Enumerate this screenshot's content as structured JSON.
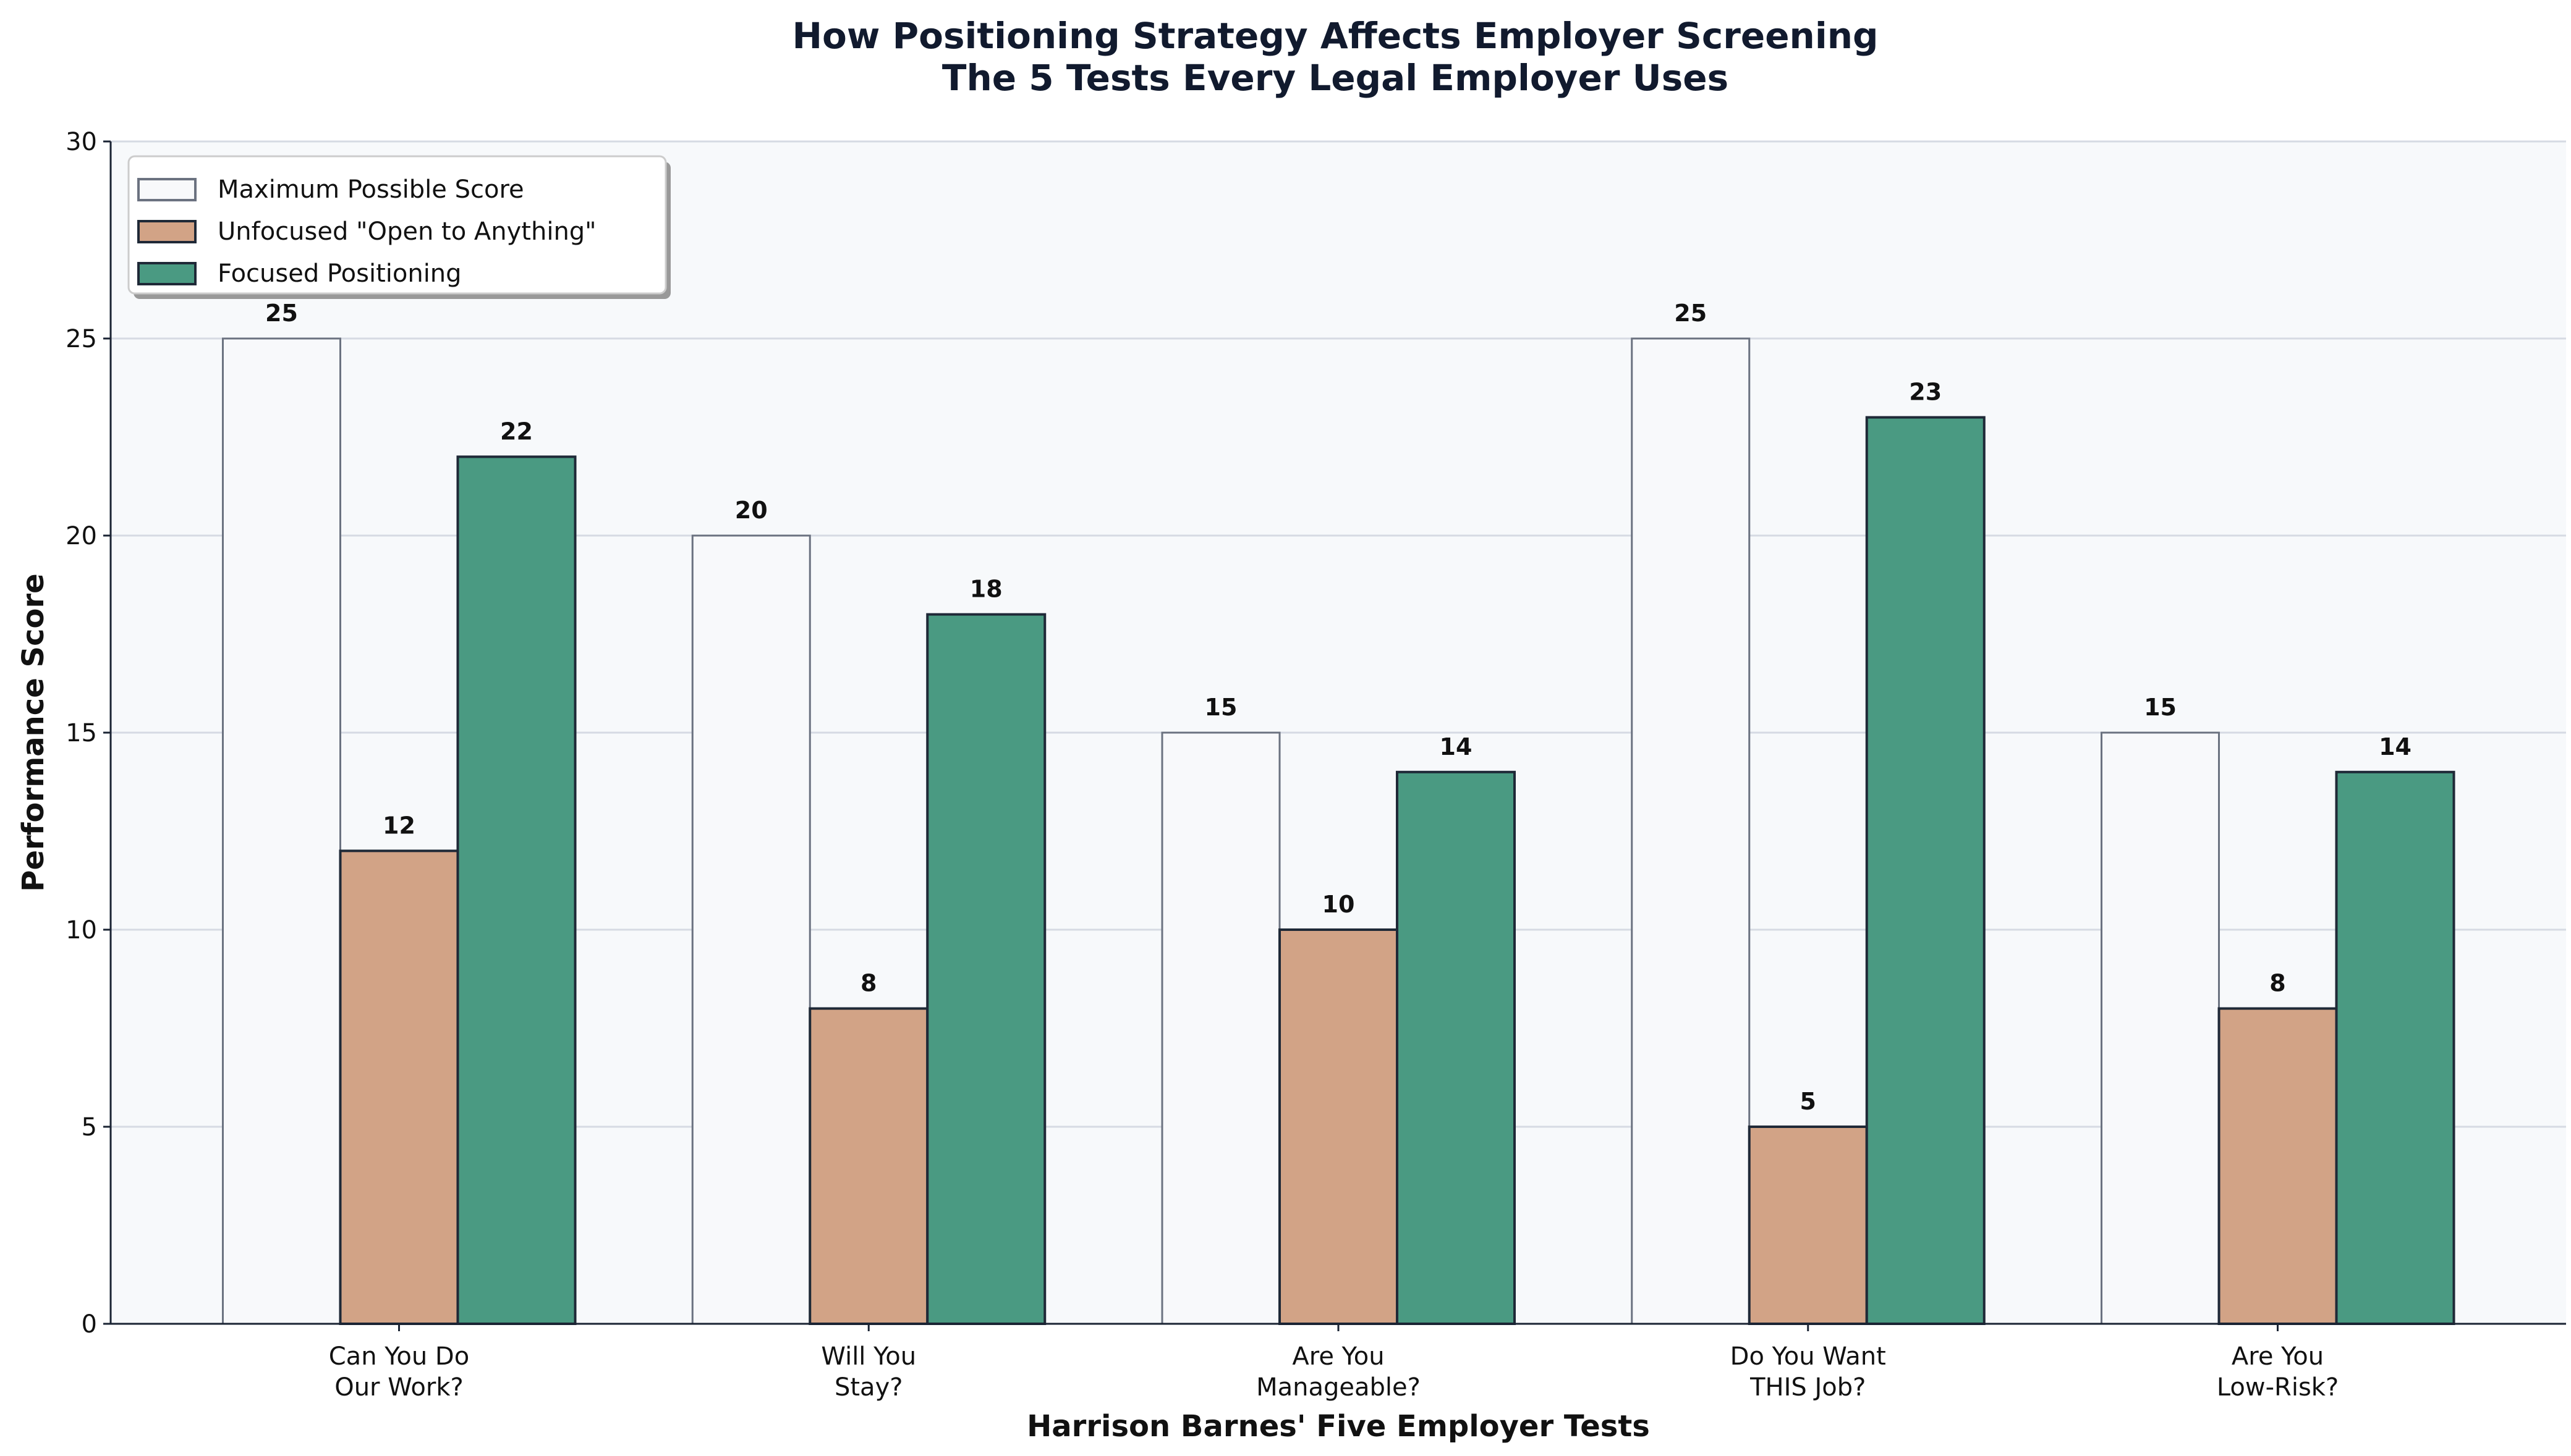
{
  "chart_data": {
    "type": "bar",
    "title": "How Positioning Strategy Affects Employer Screening",
    "subtitle": "The 5 Tests Every Legal Employer Uses",
    "xlabel": "Harrison Barnes' Five Employer Tests",
    "ylabel": "Performance Score",
    "ylim": [
      0,
      30
    ],
    "yticks": [
      "0",
      "5",
      "10",
      "15",
      "20",
      "25",
      "30"
    ],
    "grid": "y",
    "legend_position": "top-left",
    "categories": [
      [
        "Can You Do",
        "Our Work?"
      ],
      [
        "Will You",
        "Stay?"
      ],
      [
        "Are You",
        "Manageable?"
      ],
      [
        "Do You Want",
        "THIS Job?"
      ],
      [
        "Are You",
        "Low-Risk?"
      ]
    ],
    "series": [
      {
        "name": "Maximum Possible Score",
        "values": [
          25,
          20,
          15,
          25,
          15
        ],
        "color": "#f8f9fb",
        "edge": "#6b7280"
      },
      {
        "name": "Unfocused \"Open to Anything\"",
        "values": [
          12,
          8,
          10,
          5,
          8
        ],
        "color": "#d2a386",
        "edge": "#1f2937"
      },
      {
        "name": "Focused Positioning",
        "values": [
          22,
          18,
          14,
          23,
          14
        ],
        "color": "#4a9a82",
        "edge": "#1f2937"
      }
    ],
    "colors": {
      "plot_bg": "#f7f9fb",
      "grid": "#d6dae3",
      "axis": "#1a2333",
      "title": "#111a2e"
    }
  }
}
